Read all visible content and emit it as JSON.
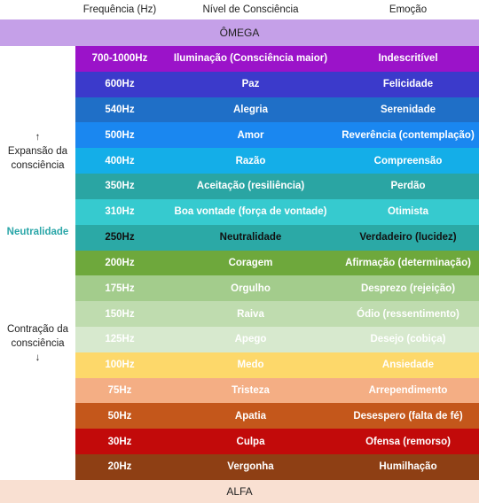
{
  "header": {
    "frequency": "Frequência (Hz)",
    "level": "Nível de Consciência",
    "emotion": "Emoção"
  },
  "top_band": "ÔMEGA",
  "bottom_band": "ALFA",
  "side": {
    "expansion": "↑\nExpansão da\nconsciência",
    "neutrality": "Neutralidade",
    "contraction": "Contração da\nconsciência\n↓"
  },
  "rows": [
    {
      "freq": "700-1000Hz",
      "level": "Iluminação (Consciência maior)",
      "emotion": "Indescritível",
      "color": "#9b13c9"
    },
    {
      "freq": "600Hz",
      "level": "Paz",
      "emotion": "Felicidade",
      "color": "#3b3acb"
    },
    {
      "freq": "540Hz",
      "level": "Alegria",
      "emotion": "Serenidade",
      "color": "#1f6fc7"
    },
    {
      "freq": "500Hz",
      "level": "Amor",
      "emotion": "Reverência (contemplação)",
      "color": "#1a87f0"
    },
    {
      "freq": "400Hz",
      "level": "Razão",
      "emotion": "Compreensão",
      "color": "#14aee8"
    },
    {
      "freq": "350Hz",
      "level": "Aceitação (resiliência)",
      "emotion": "Perdão",
      "color": "#2aa5a3"
    },
    {
      "freq": "310Hz",
      "level": "Boa vontade (força de vontade)",
      "emotion": "Otimista",
      "color": "#36cacf"
    },
    {
      "freq": "250Hz",
      "level": "Neutralidade",
      "emotion": "Verdadeiro (lucidez)",
      "color": "#2ba9a6",
      "text": "#111111"
    },
    {
      "freq": "200Hz",
      "level": "Coragem",
      "emotion": "Afirmação (determinação)",
      "color": "#6ea83c"
    },
    {
      "freq": "175Hz",
      "level": "Orgulho",
      "emotion": "Desprezo (rejeição)",
      "color": "#a3cc8c"
    },
    {
      "freq": "150Hz",
      "level": "Raiva",
      "emotion": "Ódio (ressentimento)",
      "color": "#bfdcaf"
    },
    {
      "freq": "125Hz",
      "level": "Apego",
      "emotion": "Desejo (cobiça)",
      "color": "#d7e9ce"
    },
    {
      "freq": "100Hz",
      "level": "Medo",
      "emotion": "Ansiedade",
      "color": "#fdd86a"
    },
    {
      "freq": "75Hz",
      "level": "Tristeza",
      "emotion": "Arrependimento",
      "color": "#f4ae84"
    },
    {
      "freq": "50Hz",
      "level": "Apatia",
      "emotion": "Desespero (falta de fé)",
      "color": "#c4571b"
    },
    {
      "freq": "30Hz",
      "level": "Culpa",
      "emotion": "Ofensa (remorso)",
      "color": "#c20a0a"
    },
    {
      "freq": "20Hz",
      "level": "Vergonha",
      "emotion": "Humilhação",
      "color": "#8e3f14"
    }
  ]
}
